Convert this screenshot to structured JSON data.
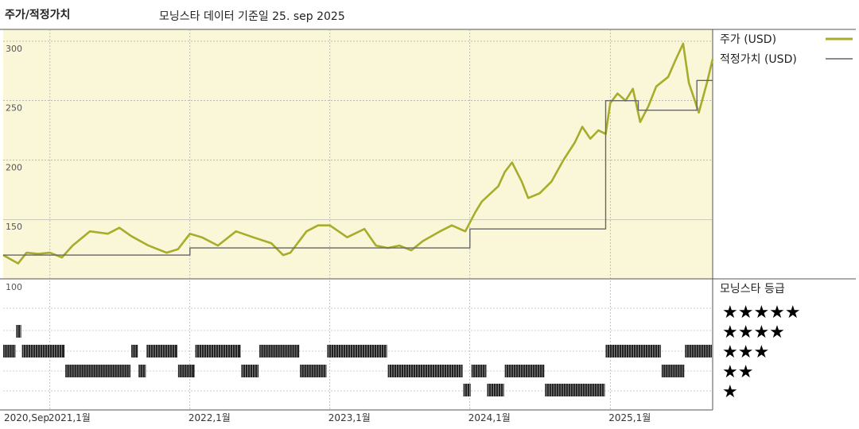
{
  "header": {
    "left_title": "주가/적정가치",
    "subtitle": "모닝스타 데이터 기준일 25. sep 2025"
  },
  "legend": {
    "price": "주가 (USD)",
    "fair": "적정가치 (USD)",
    "rating_title": "모닝스타 등급"
  },
  "colors": {
    "price_line": "#a7ad2a",
    "fair_line": "#666666",
    "price_panel_bg": "#faf6d8",
    "grid": "#999999",
    "rating_bar": "#222222"
  },
  "chart_data": {
    "type": "line",
    "y_ticks": [
      "300",
      "250",
      "200",
      "150"
    ],
    "ylim": [
      100,
      310
    ],
    "rating_axis_label": "100",
    "x_ticks": [
      "2020,Sep",
      "2021,1월",
      "2022,1월",
      "2023,1월",
      "2024,1월",
      "2025,1월"
    ],
    "x_range": [
      "2020-09-01",
      "2025-09-25"
    ],
    "series": [
      {
        "name": "주가 (USD)",
        "points": [
          [
            "2020-09-01",
            120
          ],
          [
            "2020-10-10",
            113
          ],
          [
            "2020-11-01",
            122
          ],
          [
            "2020-12-01",
            121
          ],
          [
            "2021-01-01",
            122
          ],
          [
            "2021-02-01",
            118
          ],
          [
            "2021-03-01",
            128
          ],
          [
            "2021-04-15",
            140
          ],
          [
            "2021-06-01",
            138
          ],
          [
            "2021-07-01",
            143
          ],
          [
            "2021-08-01",
            136
          ],
          [
            "2021-09-15",
            128
          ],
          [
            "2021-11-01",
            122
          ],
          [
            "2021-12-01",
            125
          ],
          [
            "2022-01-01",
            138
          ],
          [
            "2022-02-01",
            135
          ],
          [
            "2022-03-15",
            128
          ],
          [
            "2022-05-01",
            140
          ],
          [
            "2022-06-15",
            135
          ],
          [
            "2022-08-01",
            130
          ],
          [
            "2022-09-01",
            120
          ],
          [
            "2022-09-20",
            122
          ],
          [
            "2022-11-01",
            140
          ],
          [
            "2022-12-01",
            145
          ],
          [
            "2023-01-01",
            145
          ],
          [
            "2023-02-15",
            135
          ],
          [
            "2023-04-01",
            142
          ],
          [
            "2023-05-01",
            128
          ],
          [
            "2023-06-01",
            126
          ],
          [
            "2023-07-01",
            128
          ],
          [
            "2023-08-01",
            124
          ],
          [
            "2023-09-01",
            132
          ],
          [
            "2023-10-15",
            140
          ],
          [
            "2023-11-15",
            145
          ],
          [
            "2023-12-20",
            140
          ],
          [
            "2024-01-15",
            156
          ],
          [
            "2024-02-01",
            165
          ],
          [
            "2024-03-15",
            178
          ],
          [
            "2024-04-01",
            190
          ],
          [
            "2024-04-20",
            198
          ],
          [
            "2024-05-15",
            182
          ],
          [
            "2024-06-01",
            168
          ],
          [
            "2024-07-01",
            172
          ],
          [
            "2024-08-01",
            182
          ],
          [
            "2024-09-01",
            200
          ],
          [
            "2024-10-01",
            215
          ],
          [
            "2024-10-20",
            228
          ],
          [
            "2024-11-10",
            218
          ],
          [
            "2024-12-01",
            225
          ],
          [
            "2024-12-20",
            222
          ],
          [
            "2025-01-01",
            248
          ],
          [
            "2025-01-20",
            256
          ],
          [
            "2025-02-10",
            250
          ],
          [
            "2025-03-01",
            260
          ],
          [
            "2025-03-20",
            232
          ],
          [
            "2025-04-10",
            245
          ],
          [
            "2025-05-01",
            262
          ],
          [
            "2025-06-01",
            270
          ],
          [
            "2025-06-20",
            284
          ],
          [
            "2025-07-10",
            298
          ],
          [
            "2025-07-25",
            265
          ],
          [
            "2025-08-20",
            240
          ],
          [
            "2025-09-10",
            265
          ],
          [
            "2025-09-25",
            285
          ]
        ]
      },
      {
        "name": "적정가치 (USD)",
        "points": [
          [
            "2020-09-01",
            120
          ],
          [
            "2022-01-01",
            120
          ],
          [
            "2022-01-01",
            126
          ],
          [
            "2024-01-01",
            126
          ],
          [
            "2024-01-01",
            142
          ],
          [
            "2024-12-20",
            142
          ],
          [
            "2024-12-20",
            250
          ],
          [
            "2025-03-15",
            250
          ],
          [
            "2025-03-15",
            242
          ],
          [
            "2025-08-15",
            242
          ],
          [
            "2025-08-15",
            267
          ],
          [
            "2025-09-25",
            267
          ]
        ]
      }
    ],
    "rating": {
      "levels": [
        "★★★★★",
        "★★★★",
        "★★★",
        "★★",
        "★"
      ],
      "segments": [
        [
          "2020-09-01",
          "2020-10-05",
          3
        ],
        [
          "2020-10-05",
          "2020-10-20",
          4
        ],
        [
          "2020-10-20",
          "2021-02-10",
          3
        ],
        [
          "2021-02-10",
          "2021-08-01",
          2
        ],
        [
          "2021-08-01",
          "2021-08-20",
          3
        ],
        [
          "2021-08-20",
          "2021-09-10",
          2
        ],
        [
          "2021-09-10",
          "2021-12-01",
          3
        ],
        [
          "2021-12-01",
          "2022-01-15",
          2
        ],
        [
          "2022-01-15",
          "2022-05-15",
          3
        ],
        [
          "2022-05-15",
          "2022-07-01",
          2
        ],
        [
          "2022-07-01",
          "2022-10-15",
          3
        ],
        [
          "2022-10-15",
          "2022-12-25",
          2
        ],
        [
          "2022-12-25",
          "2023-06-01",
          3
        ],
        [
          "2023-06-01",
          "2023-12-15",
          2
        ],
        [
          "2023-12-15",
          "2024-01-05",
          1
        ],
        [
          "2024-01-05",
          "2024-02-15",
          2
        ],
        [
          "2024-02-15",
          "2024-04-01",
          1
        ],
        [
          "2024-04-01",
          "2024-07-15",
          2
        ],
        [
          "2024-07-15",
          "2024-12-20",
          1
        ],
        [
          "2024-12-20",
          "2025-05-15",
          3
        ],
        [
          "2025-05-15",
          "2025-07-15",
          2
        ],
        [
          "2025-07-15",
          "2025-09-25",
          3
        ]
      ]
    }
  }
}
